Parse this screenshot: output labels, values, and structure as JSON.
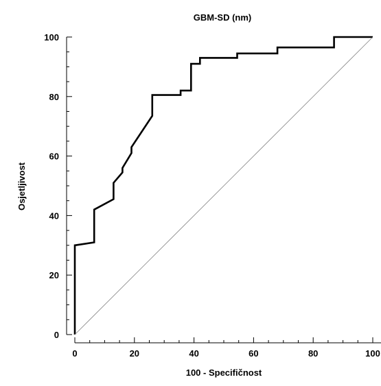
{
  "chart_data": {
    "type": "line",
    "title": "GBM-SD (nm)",
    "xlabel": "100 - Specifičnost",
    "ylabel": "Osjetljivost",
    "xlim": [
      0,
      100
    ],
    "ylim": [
      0,
      100
    ],
    "x_ticks": [
      "0",
      "20",
      "40",
      "60",
      "80",
      "100"
    ],
    "y_ticks": [
      "0",
      "20",
      "40",
      "60",
      "80",
      "100"
    ],
    "grid": false,
    "legend": "none",
    "series": [
      {
        "style": "step",
        "color": "#000000",
        "x": [
          0,
          0,
          6.5,
          6.5,
          13,
          13,
          16,
          16,
          19,
          19,
          26,
          26,
          35.5,
          35.5,
          39,
          39,
          42,
          42,
          54.5,
          54.5,
          68,
          68,
          87,
          87,
          100
        ],
        "y": [
          0,
          30,
          31,
          42,
          45.5,
          51,
          54.5,
          56,
          61,
          63,
          73.5,
          80.5,
          80.5,
          82,
          82,
          91,
          91,
          93,
          93,
          94.5,
          94.5,
          96.5,
          96.5,
          100,
          100
        ]
      },
      {
        "style": "reference-diagonal",
        "color": "#888888",
        "x": [
          0,
          100
        ],
        "y": [
          0,
          100
        ]
      }
    ]
  }
}
